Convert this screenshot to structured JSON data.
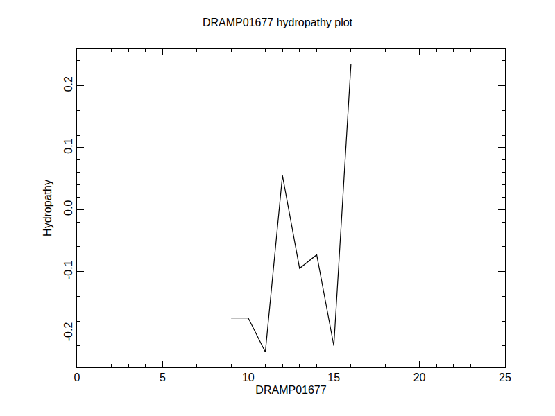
{
  "chart_data": {
    "type": "line",
    "title": "DRAMP01677 hydropathy plot",
    "x_label": "DRAMP01677",
    "y_label": "Hydropathy",
    "x": [
      9,
      10,
      11,
      12,
      13,
      14,
      15,
      16
    ],
    "values": [
      -0.175,
      -0.175,
      -0.23,
      0.055,
      -0.095,
      -0.073,
      -0.22,
      0.235
    ],
    "color": "#000000",
    "xlim": [
      0,
      25
    ],
    "xticks": [
      0,
      5,
      10,
      15,
      20,
      25
    ],
    "ylim": [
      -0.255,
      0.26
    ],
    "yticks": [
      -0.2,
      -0.1,
      {
        "value": 0,
        "label": "0.0"
      },
      0.1,
      0.2
    ],
    "grid": false
  }
}
